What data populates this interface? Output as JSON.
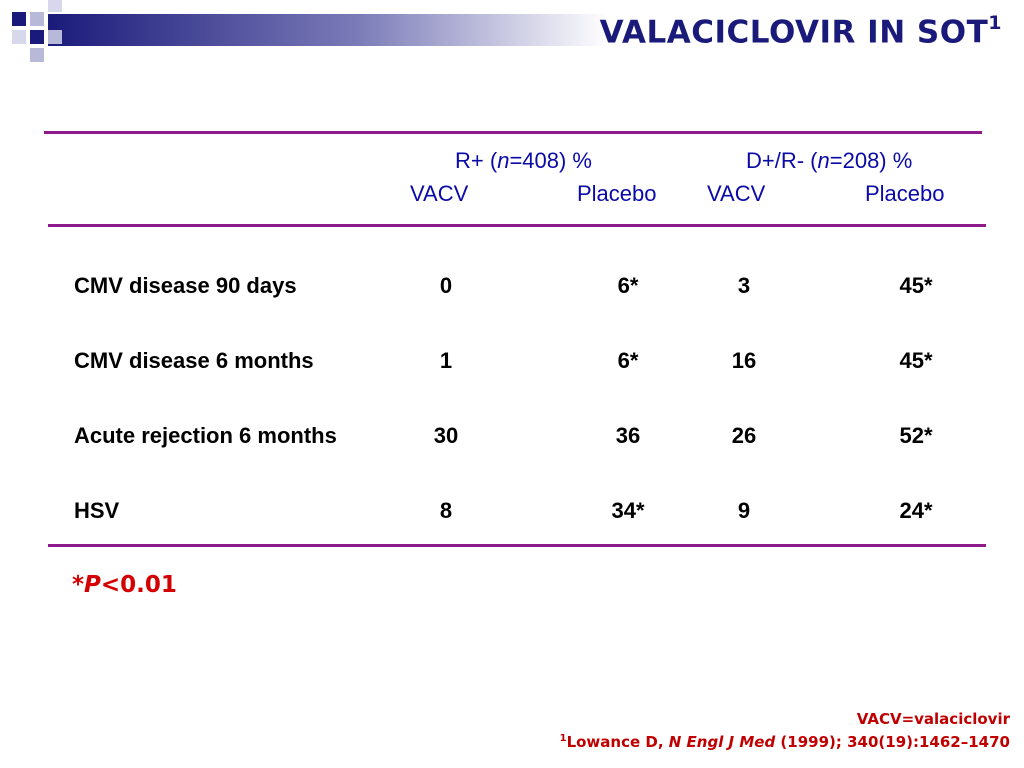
{
  "title": {
    "text": "VALACICLOVIR IN SOT",
    "superscript": "1"
  },
  "header": {
    "group1": {
      "prefix": "R+ (",
      "n_symbol": "n",
      "suffix": "=408) %"
    },
    "group2": {
      "prefix": "D+/R- (",
      "n_symbol": "n",
      "suffix": "=208) %"
    },
    "columns": [
      "VACV",
      "Placebo",
      "VACV",
      "Placebo"
    ]
  },
  "rows": [
    {
      "label": "CMV disease 90 days",
      "values": [
        "0",
        "6*",
        "3",
        "45*"
      ]
    },
    {
      "label": "CMV disease 6 months",
      "values": [
        "1",
        "6*",
        "16",
        "45*"
      ]
    },
    {
      "label": "Acute rejection 6 months",
      "values": [
        "30",
        "36",
        "26",
        "52*"
      ]
    },
    {
      "label": "HSV",
      "values": [
        "8",
        "34*",
        "9",
        "24*"
      ]
    }
  ],
  "pnote": {
    "star": "*",
    "p": "P",
    "rest": "<0.01"
  },
  "footnotes": {
    "abbrev": "VACV=valaciclovir",
    "ref_marker": "1",
    "ref_author": "Lowance D, ",
    "ref_journal": "N Engl J Med",
    "ref_rest": " (1999); 340(19):1462–1470"
  },
  "colors": {
    "title": "#1a1a7a",
    "rule": "#8e1a8e",
    "header": "#0a0aa8",
    "note": "#d40000",
    "footnote": "#c00000"
  }
}
